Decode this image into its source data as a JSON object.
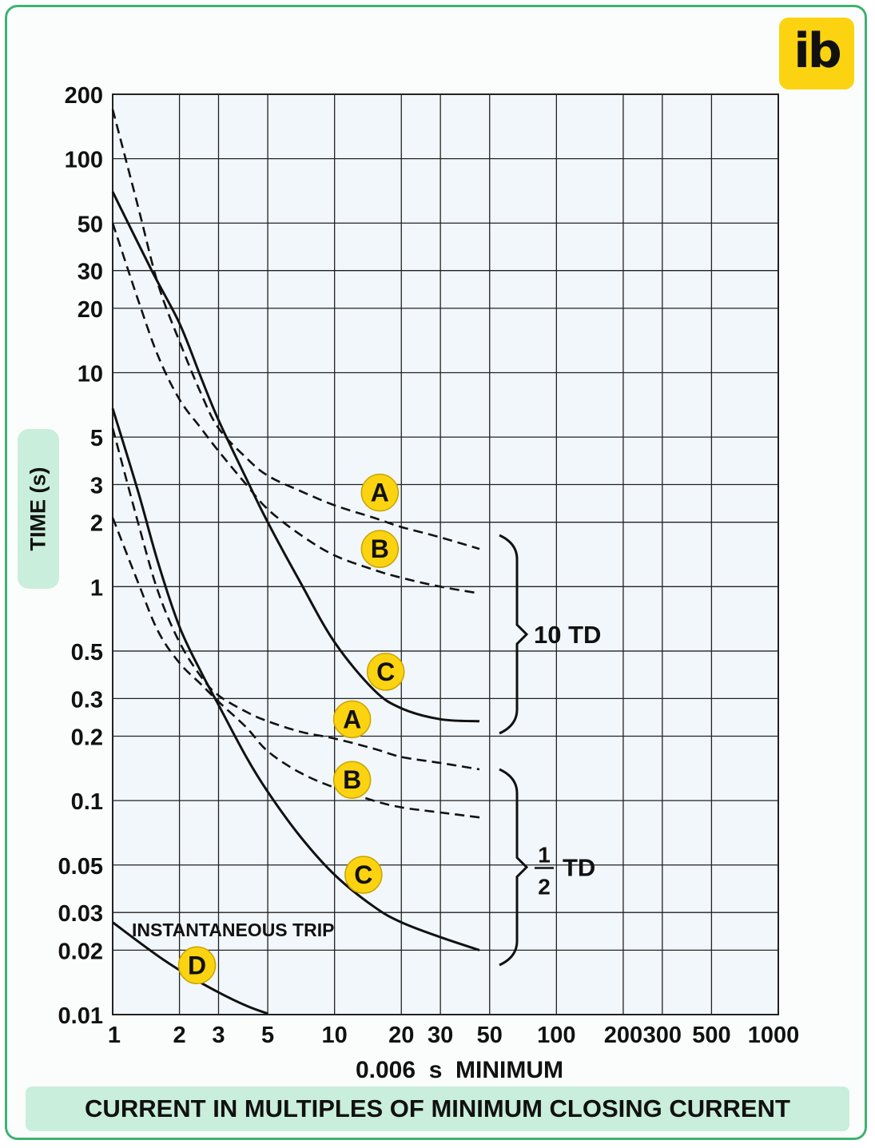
{
  "logo": {
    "text": "ib",
    "color": "#fbd311"
  },
  "chart_data": {
    "type": "line",
    "title": "",
    "xlabel": "CURRENT IN MULTIPLES OF MINIMUM CLOSING CURRENT",
    "xsublabel": "0.006  s  MINIMUM",
    "ylabel": "TIME (s)",
    "xscale": "log",
    "yscale": "log",
    "xlim": [
      1,
      1000
    ],
    "ylim": [
      0.01,
      200
    ],
    "grid": true,
    "x_ticks": [
      1,
      2,
      3,
      5,
      10,
      20,
      30,
      50,
      100,
      200,
      300,
      500,
      1000
    ],
    "x_tick_labels": [
      "1",
      "2",
      "3",
      "5",
      "10",
      "20",
      "30",
      "50",
      "100",
      "200",
      "300",
      "500",
      "1000"
    ],
    "y_ticks": [
      0.01,
      0.02,
      0.03,
      0.05,
      0.1,
      0.2,
      0.3,
      0.5,
      1,
      2,
      3,
      5,
      10,
      20,
      30,
      50,
      100,
      200
    ],
    "y_tick_labels": [
      "0.01",
      "0.02",
      "0.03",
      "0.05",
      "0.1",
      "0.2",
      "0.3",
      "0.5",
      "1",
      "2",
      "3",
      "5",
      "10",
      "20",
      "30",
      "50",
      "100",
      "200"
    ],
    "series": [
      {
        "group": "10 TD",
        "label": "A",
        "style": "dashed",
        "points": [
          [
            1,
            170
          ],
          [
            1.3,
            60
          ],
          [
            1.6,
            26
          ],
          [
            2,
            14
          ],
          [
            2.5,
            8
          ],
          [
            3,
            5.5
          ],
          [
            4,
            4
          ],
          [
            5,
            3.3
          ],
          [
            7,
            2.8
          ],
          [
            10,
            2.4
          ],
          [
            15,
            2.1
          ],
          [
            20,
            1.9
          ],
          [
            30,
            1.7
          ],
          [
            45,
            1.5
          ]
        ]
      },
      {
        "group": "10 TD",
        "label": "B",
        "style": "dashed",
        "points": [
          [
            1,
            50
          ],
          [
            1.3,
            22
          ],
          [
            1.6,
            12
          ],
          [
            2,
            7.5
          ],
          [
            2.5,
            5.5
          ],
          [
            3,
            4.3
          ],
          [
            4,
            3
          ],
          [
            5,
            2.3
          ],
          [
            7,
            1.75
          ],
          [
            10,
            1.4
          ],
          [
            15,
            1.2
          ],
          [
            20,
            1.1
          ],
          [
            30,
            1
          ],
          [
            45,
            0.93
          ]
        ]
      },
      {
        "group": "10 TD",
        "label": "C",
        "style": "solid",
        "points": [
          [
            1,
            70
          ],
          [
            1.5,
            30
          ],
          [
            2,
            17
          ],
          [
            2.5,
            9.5
          ],
          [
            3,
            6
          ],
          [
            4,
            3.2
          ],
          [
            5,
            2
          ],
          [
            7,
            1.05
          ],
          [
            10,
            0.55
          ],
          [
            15,
            0.33
          ],
          [
            20,
            0.27
          ],
          [
            30,
            0.24
          ],
          [
            45,
            0.235
          ]
        ]
      },
      {
        "group": "1/2 TD",
        "label": "A",
        "style": "dashed",
        "points": [
          [
            1,
            5.5
          ],
          [
            1.3,
            2
          ],
          [
            1.6,
            0.95
          ],
          [
            2,
            0.55
          ],
          [
            2.5,
            0.38
          ],
          [
            3,
            0.31
          ],
          [
            4,
            0.26
          ],
          [
            5,
            0.235
          ],
          [
            7,
            0.21
          ],
          [
            10,
            0.195
          ],
          [
            15,
            0.175
          ],
          [
            20,
            0.16
          ],
          [
            30,
            0.15
          ],
          [
            45,
            0.14
          ]
        ]
      },
      {
        "group": "1/2 TD",
        "label": "B",
        "style": "dashed",
        "points": [
          [
            1,
            2.1
          ],
          [
            1.3,
            1.05
          ],
          [
            1.6,
            0.62
          ],
          [
            2,
            0.44
          ],
          [
            2.5,
            0.35
          ],
          [
            3,
            0.29
          ],
          [
            4,
            0.22
          ],
          [
            5,
            0.17
          ],
          [
            7,
            0.135
          ],
          [
            10,
            0.115
          ],
          [
            15,
            0.1
          ],
          [
            20,
            0.093
          ],
          [
            30,
            0.088
          ],
          [
            47,
            0.083
          ]
        ]
      },
      {
        "group": "1/2 TD",
        "label": "C",
        "style": "solid",
        "points": [
          [
            1,
            6.8
          ],
          [
            1.3,
            2.8
          ],
          [
            1.6,
            1.3
          ],
          [
            2,
            0.65
          ],
          [
            2.5,
            0.4
          ],
          [
            3,
            0.28
          ],
          [
            4,
            0.16
          ],
          [
            5,
            0.11
          ],
          [
            7,
            0.068
          ],
          [
            10,
            0.045
          ],
          [
            15,
            0.032
          ],
          [
            20,
            0.027
          ],
          [
            30,
            0.023
          ],
          [
            45,
            0.02
          ]
        ]
      },
      {
        "group": "INSTANTANEOUS TRIP",
        "label": "D",
        "style": "solid",
        "points": [
          [
            1,
            0.027
          ],
          [
            1.3,
            0.022
          ],
          [
            1.7,
            0.018
          ],
          [
            2.2,
            0.0152
          ],
          [
            3,
            0.0127
          ],
          [
            4,
            0.011
          ],
          [
            5,
            0.0101
          ]
        ]
      }
    ],
    "markers": [
      {
        "label": "A",
        "x": 16,
        "y": 2.75
      },
      {
        "label": "B",
        "x": 16,
        "y": 1.5
      },
      {
        "label": "C",
        "x": 17,
        "y": 0.4
      },
      {
        "label": "A",
        "x": 12,
        "y": 0.24
      },
      {
        "label": "B",
        "x": 12,
        "y": 0.125
      },
      {
        "label": "C",
        "x": 13.5,
        "y": 0.045
      },
      {
        "label": "D",
        "x": 2.4,
        "y": 0.017
      }
    ],
    "annotations": {
      "instantaneous_trip": "INSTANTANEOUS TRIP",
      "ten_td": "10 TD",
      "half_td_num": "1",
      "half_td_den": "2",
      "half_td_suffix": "TD"
    },
    "colors": {
      "grid": "#222222",
      "plot_bg": "#f2f7fb",
      "marker": "#fbd311",
      "curve": "#111111"
    }
  }
}
